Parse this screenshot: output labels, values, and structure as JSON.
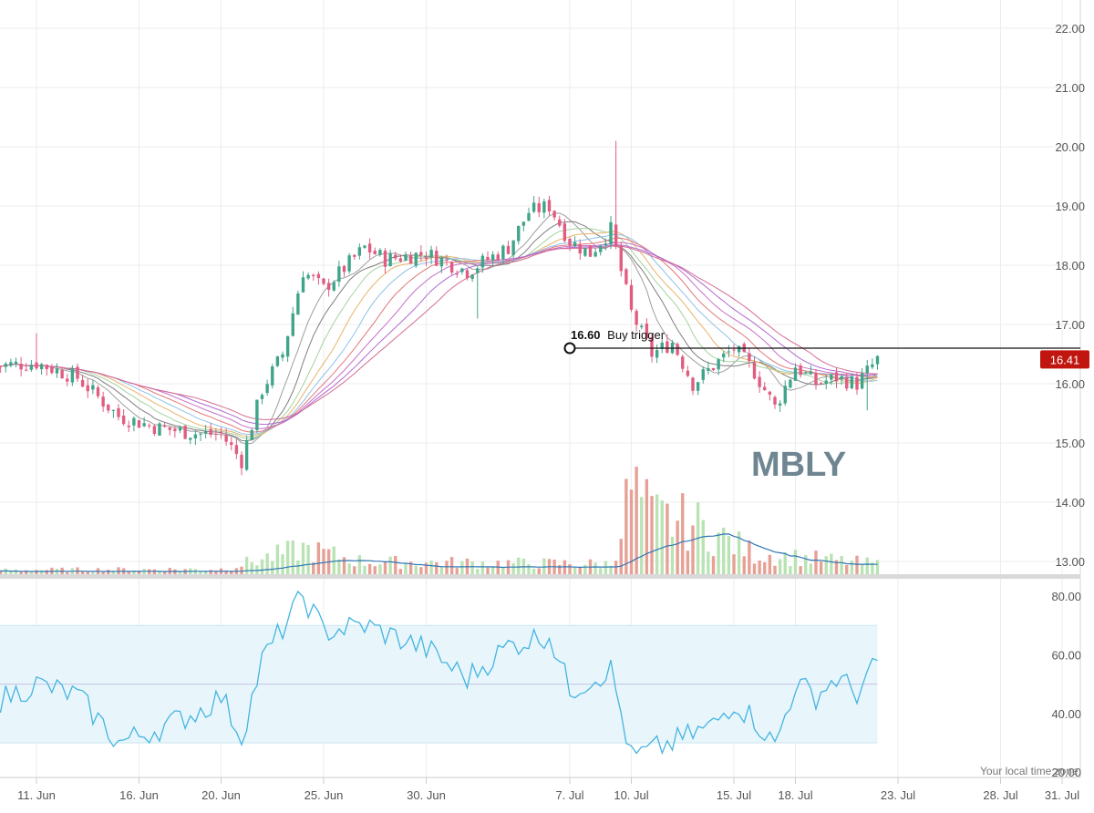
{
  "chart_data": {
    "type": "candlestick",
    "symbol_watermark": "MBLY",
    "price_axis": {
      "ticks": [
        22,
        21,
        20,
        19,
        18,
        17,
        16,
        15,
        14,
        13
      ],
      "tick_labels": [
        "22.00",
        "21.00",
        "20.00",
        "19.00",
        "18.00",
        "17.00",
        "16.00",
        "15.00",
        "14.00",
        "13.00"
      ],
      "range": [
        12.65,
        22.5
      ]
    },
    "time_axis": {
      "labels": [
        "11. Jun",
        "16. Jun",
        "20. Jun",
        "25. Jun",
        "30. Jun",
        "7. Jul",
        "10. Jul",
        "15. Jul",
        "18. Jul",
        "23. Jul",
        "28. Jul",
        "31. Jul"
      ],
      "label_dates": [
        "2018-06-11",
        "2018-06-16",
        "2018-06-20",
        "2018-06-25",
        "2018-06-30",
        "2018-07-07",
        "2018-07-10",
        "2018-07-15",
        "2018-07-18",
        "2018-07-23",
        "2018-07-28",
        "2018-07-31"
      ]
    },
    "close_anchors": [
      {
        "date": "2018-06-09",
        "close": 16.3
      },
      {
        "date": "2018-06-11",
        "close": 16.35
      },
      {
        "date": "2018-06-13",
        "close": 16.1
      },
      {
        "date": "2018-06-15",
        "close": 15.45
      },
      {
        "date": "2018-06-17",
        "close": 15.25
      },
      {
        "date": "2018-06-19",
        "close": 15.15
      },
      {
        "date": "2018-06-20",
        "close": 15.15
      },
      {
        "date": "2018-06-21",
        "close": 14.7
      },
      {
        "date": "2018-06-22",
        "close": 15.9
      },
      {
        "date": "2018-06-23",
        "close": 16.5
      },
      {
        "date": "2018-06-24",
        "close": 17.9
      },
      {
        "date": "2018-06-25",
        "close": 17.6
      },
      {
        "date": "2018-06-27",
        "close": 18.3
      },
      {
        "date": "2018-06-28",
        "close": 18.1
      },
      {
        "date": "2018-06-30",
        "close": 18.2
      },
      {
        "date": "2018-07-02",
        "close": 17.9
      },
      {
        "date": "2018-07-04",
        "close": 18.3
      },
      {
        "date": "2018-07-05",
        "close": 18.9
      },
      {
        "date": "2018-07-06",
        "close": 19.0
      },
      {
        "date": "2018-07-07",
        "close": 18.4
      },
      {
        "date": "2018-07-08",
        "close": 18.2
      },
      {
        "date": "2018-07-09",
        "close": 18.6
      },
      {
        "date": "2018-07-10",
        "close": 17.2
      },
      {
        "date": "2018-07-11",
        "close": 16.5
      },
      {
        "date": "2018-07-12",
        "close": 16.7
      },
      {
        "date": "2018-07-13",
        "close": 16.0
      },
      {
        "date": "2018-07-14",
        "close": 16.3
      },
      {
        "date": "2018-07-15",
        "close": 16.6
      },
      {
        "date": "2018-07-16",
        "close": 16.2
      },
      {
        "date": "2018-07-17",
        "close": 15.6
      },
      {
        "date": "2018-07-18",
        "close": 16.3
      },
      {
        "date": "2018-07-19",
        "close": 16.0
      },
      {
        "date": "2018-07-20",
        "close": 16.1
      },
      {
        "date": "2018-07-21",
        "close": 16.0
      },
      {
        "date": "2018-07-22",
        "close": 16.41
      }
    ],
    "last_price": "16.41",
    "annotation": {
      "value": "16.60",
      "text": "Buy trigger",
      "price": 16.6,
      "start_date": "2018-07-07"
    },
    "volume_anchors": [
      {
        "date": "2018-06-09",
        "volume": 0.04
      },
      {
        "date": "2018-06-20",
        "volume": 0.05
      },
      {
        "date": "2018-06-24",
        "volume": 0.25
      },
      {
        "date": "2018-06-27",
        "volume": 0.12
      },
      {
        "date": "2018-07-09",
        "volume": 0.1
      },
      {
        "date": "2018-07-10",
        "volume": 0.85
      },
      {
        "date": "2018-07-11",
        "volume": 0.55
      },
      {
        "date": "2018-07-13",
        "volume": 0.5
      },
      {
        "date": "2018-07-16",
        "volume": 0.2
      },
      {
        "date": "2018-07-22",
        "volume": 0.1
      }
    ],
    "rsi": {
      "axis_ticks": [
        80,
        60,
        40,
        20
      ],
      "tick_labels": [
        "80.00",
        "60.00",
        "40.00",
        "20.00"
      ],
      "range": [
        18,
        83
      ],
      "band": [
        30,
        70
      ],
      "midline": 50,
      "anchors": [
        {
          "date": "2018-06-09",
          "value": 44
        },
        {
          "date": "2018-06-11",
          "value": 50
        },
        {
          "date": "2018-06-13",
          "value": 46
        },
        {
          "date": "2018-06-15",
          "value": 30
        },
        {
          "date": "2018-06-17",
          "value": 35
        },
        {
          "date": "2018-06-19",
          "value": 41
        },
        {
          "date": "2018-06-20",
          "value": 46
        },
        {
          "date": "2018-06-21",
          "value": 32
        },
        {
          "date": "2018-06-22",
          "value": 58
        },
        {
          "date": "2018-06-24",
          "value": 80
        },
        {
          "date": "2018-06-25",
          "value": 68
        },
        {
          "date": "2018-06-27",
          "value": 70
        },
        {
          "date": "2018-06-30",
          "value": 62
        },
        {
          "date": "2018-07-02",
          "value": 52
        },
        {
          "date": "2018-07-04",
          "value": 63
        },
        {
          "date": "2018-07-06",
          "value": 67
        },
        {
          "date": "2018-07-07",
          "value": 48
        },
        {
          "date": "2018-07-09",
          "value": 55
        },
        {
          "date": "2018-07-10",
          "value": 25
        },
        {
          "date": "2018-07-12",
          "value": 30
        },
        {
          "date": "2018-07-14",
          "value": 36
        },
        {
          "date": "2018-07-15",
          "value": 44
        },
        {
          "date": "2018-07-16",
          "value": 38
        },
        {
          "date": "2018-07-17",
          "value": 29
        },
        {
          "date": "2018-07-18",
          "value": 50
        },
        {
          "date": "2018-07-19",
          "value": 46
        },
        {
          "date": "2018-07-20",
          "value": 52
        },
        {
          "date": "2018-07-21",
          "value": 47
        },
        {
          "date": "2018-07-22",
          "value": 57
        }
      ]
    },
    "moving_average_colors": [
      "#9e9e9e",
      "#7e7e7e",
      "#a4d3a0",
      "#e8b36a",
      "#8fc1e8",
      "#e2787a",
      "#c770c9",
      "#b06ad0",
      "#d36b92"
    ],
    "grid": true
  },
  "colors": {
    "up": "#3fa48a",
    "down": "#e05c80",
    "volume_up": "#b9e3b4",
    "volume_down": "#e6a095",
    "volume_ma": "#2f77b6",
    "rsi_line": "#44b4e0",
    "rsi_band": "#e8f6fb",
    "price_tag": "#c0160f",
    "grid": "#ececec"
  },
  "footer": {
    "timezone_note": "Your local time zone"
  }
}
